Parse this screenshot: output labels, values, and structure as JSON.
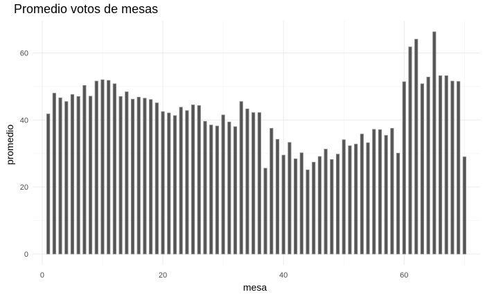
{
  "chart_data": {
    "type": "bar",
    "title": "Promedio votos de mesas",
    "xlabel": "mesa",
    "ylabel": "promedio",
    "xlim": [
      -1.6,
      72.6
    ],
    "ylim": [
      -3.3,
      69.6
    ],
    "xticks": [
      0,
      20,
      40,
      60
    ],
    "yticks": [
      0,
      20,
      40,
      60
    ],
    "grid": true,
    "legend": "none",
    "colors": {
      "bar_fill": "#555555",
      "bar_outline": "#8a8a8a",
      "grid": "#ebebeb"
    },
    "x": [
      1,
      2,
      3,
      4,
      5,
      6,
      7,
      8,
      9,
      10,
      11,
      12,
      13,
      14,
      15,
      16,
      17,
      18,
      19,
      20,
      21,
      22,
      23,
      24,
      25,
      26,
      27,
      28,
      29,
      30,
      31,
      32,
      33,
      34,
      35,
      36,
      37,
      38,
      39,
      40,
      41,
      42,
      43,
      44,
      45,
      46,
      47,
      48,
      49,
      50,
      51,
      52,
      53,
      54,
      55,
      56,
      57,
      58,
      59,
      60,
      61,
      62,
      63,
      64,
      65,
      66,
      67,
      68,
      69,
      70
    ],
    "values": [
      41.8,
      48.0,
      46.6,
      45.5,
      47.6,
      47.0,
      50.3,
      47.1,
      51.6,
      52.0,
      51.8,
      50.8,
      47.0,
      48.4,
      46.2,
      46.8,
      46.5,
      46.1,
      45.1,
      42.5,
      42.1,
      41.3,
      43.8,
      42.8,
      44.5,
      44.3,
      39.6,
      38.5,
      38.2,
      41.5,
      39.4,
      38.0,
      45.5,
      43.3,
      42.2,
      42.2,
      25.6,
      37.5,
      34.2,
      29.5,
      33.3,
      28.4,
      30.2,
      25.1,
      27.4,
      29.1,
      31.3,
      28.2,
      29.8,
      34.1,
      32.3,
      32.8,
      35.8,
      33.2,
      37.2,
      37.1,
      35.4,
      37.5,
      30.1,
      51.4,
      61.8,
      64.1,
      50.8,
      52.8,
      66.3,
      53.2,
      53.2,
      51.6,
      51.5,
      29.0
    ]
  }
}
